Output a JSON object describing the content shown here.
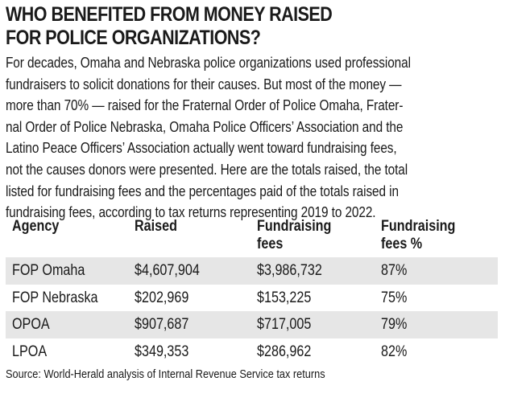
{
  "chart_data": {
    "type": "table",
    "title_lines": [
      "WHO BENEFITED FROM MONEY RAISED",
      "FOR POLICE ORGANIZATIONS?"
    ],
    "intro_lines": [
      "For decades, Omaha and Nebraska police organizations used professional",
      "fundraisers to solicit donations for their causes. But most of the money —",
      "more than 70% — raised for the Fraternal Order of Police Omaha, Frater-",
      "nal Order of Police Nebraska, Omaha Police Officers’ Association and the",
      "Latino Peace Officers’ Association actually went toward fundraising fees,",
      "not the causes donors were presented. Here are the totals raised, the total",
      "listed for fundraising fees and the percentages paid of the totals raised in",
      "fundraising fees, according to tax returns representing 2019 to 2022."
    ],
    "columns": [
      {
        "line1": "Agency",
        "line2": ""
      },
      {
        "line1": "Raised",
        "line2": ""
      },
      {
        "line1": "Fundraising",
        "line2": "fees"
      },
      {
        "line1": "Fundraising",
        "line2": "fees %"
      }
    ],
    "rows": [
      [
        "FOP Omaha",
        "$4,607,904",
        "$3,986,732",
        "87%"
      ],
      [
        "FOP Nebraska",
        "$202,969",
        "$153,225",
        "75%"
      ],
      [
        "OPOA",
        "$907,687",
        "$717,005",
        "79%"
      ],
      [
        "LPOA",
        "$349,353",
        "$286,962",
        "82%"
      ]
    ],
    "source": "Source: World-Herald analysis of Internal Revenue Service tax returns",
    "colors": {
      "stripe": "#e6e6e6",
      "text": "#1a1a1a"
    }
  }
}
